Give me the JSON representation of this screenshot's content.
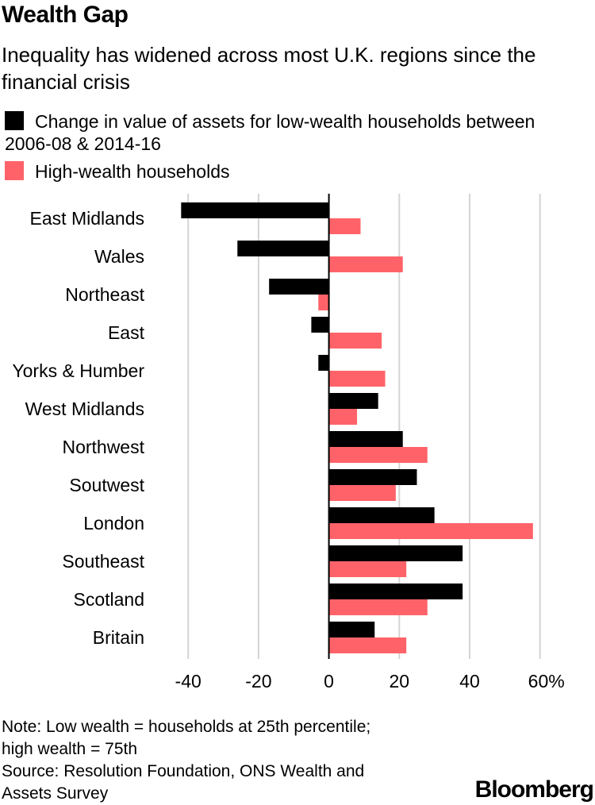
{
  "header": {
    "title": "Wealth Gap",
    "subtitle": "Inequality has widened across most U.K. regions since the financial crisis"
  },
  "chart_data": {
    "type": "bar",
    "orientation": "horizontal",
    "categories": [
      "East Midlands",
      "Wales",
      "Northeast",
      "East",
      "Yorks & Humber",
      "West Midlands",
      "Northwest",
      "Soutwest",
      "London",
      "Southeast",
      "Scotland",
      "Britain"
    ],
    "series": [
      {
        "name": "Change in value of assets for low-wealth households between 2006-08 & 2014-16",
        "color": "#000000",
        "values": [
          -42,
          -26,
          -17,
          -5,
          -3,
          14,
          21,
          25,
          30,
          38,
          38,
          13
        ]
      },
      {
        "name": "High-wealth households",
        "color": "#ff6369",
        "values": [
          9,
          21,
          -3,
          15,
          16,
          8,
          28,
          19,
          58,
          22,
          28,
          22
        ]
      }
    ],
    "xlim": [
      -40,
      60
    ],
    "xticks": [
      -40,
      -20,
      0,
      20,
      40,
      60
    ],
    "xtick_labels": [
      "-40",
      "-20",
      "0",
      "20",
      "40",
      "60%"
    ],
    "grid": true,
    "legend_position": "top-left"
  },
  "footer": {
    "note_line1": "Note: Low wealth = households at 25th percentile;",
    "note_line2": "high wealth = 75th",
    "source_line1": "Source: Resolution Foundation, ONS Wealth and",
    "source_line2": "Assets Survey"
  },
  "brand": {
    "logo": "Bloomberg"
  }
}
